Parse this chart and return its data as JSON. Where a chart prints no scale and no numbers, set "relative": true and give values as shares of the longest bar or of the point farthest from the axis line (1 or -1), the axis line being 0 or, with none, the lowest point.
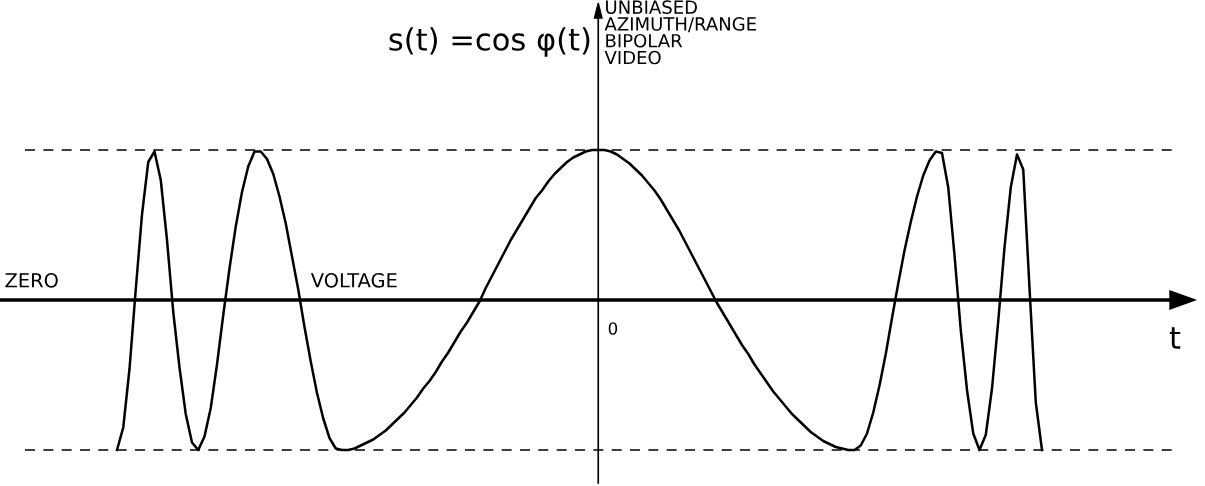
{
  "chart_data": {
    "type": "line",
    "relative": true,
    "ylabel": "s(t) =cos φ(t)",
    "xlabel": "t",
    "categories": [
      null,
      null,
      null,
      null,
      null,
      null,
      null,
      null,
      null,
      null,
      null,
      null,
      null,
      null,
      null,
      null,
      null,
      null,
      null,
      null,
      null,
      null,
      null,
      null,
      null,
      null,
      null,
      null,
      null,
      null,
      null,
      null,
      null,
      null,
      null,
      null,
      null,
      null,
      null,
      null,
      null,
      null,
      null,
      null,
      null,
      null,
      null,
      null,
      null,
      null,
      null,
      null,
      null,
      null,
      null,
      null,
      null,
      null,
      null,
      null,
      null,
      null,
      null,
      null,
      null,
      null,
      null,
      null,
      null,
      null,
      null,
      null,
      null,
      null,
      null,
      null,
      null,
      null,
      null,
      null,
      null,
      null,
      null,
      null,
      null,
      null,
      null,
      null,
      null,
      null,
      null,
      null,
      null,
      null,
      null,
      null,
      null,
      null,
      null,
      null,
      null,
      null,
      null,
      null,
      null,
      null,
      null,
      null,
      null,
      null,
      null,
      null,
      null,
      null,
      null,
      null,
      null,
      null,
      null,
      null,
      null,
      null,
      null,
      null,
      null,
      null,
      null,
      null,
      null,
      null,
      null,
      null,
      null,
      null,
      null,
      null,
      null,
      null,
      null,
      null,
      null,
      null,
      null,
      null,
      null,
      null,
      null,
      null,
      null
    ],
    "series": [
      {
        "color": "#000000",
        "values": [
          -1.0,
          -0.85,
          -0.46,
          0.07,
          0.57,
          0.92,
          0.99,
          0.8,
          0.4,
          -0.08,
          -0.45,
          -0.76,
          -0.95,
          -1.0,
          -0.91,
          -0.72,
          -0.43,
          -0.1,
          0.21,
          0.49,
          0.72,
          0.89,
          0.99,
          0.99,
          0.94,
          0.84,
          0.69,
          0.51,
          0.29,
          0.07,
          -0.18,
          -0.41,
          -0.62,
          -0.79,
          -0.92,
          -0.99,
          -1.0,
          -1.0,
          -0.99,
          -0.97,
          -0.95,
          -0.93,
          -0.9,
          -0.87,
          -0.83,
          -0.79,
          -0.75,
          -0.7,
          -0.65,
          -0.59,
          -0.54,
          -0.48,
          -0.41,
          -0.35,
          -0.28,
          -0.21,
          -0.15,
          -0.08,
          -0.01,
          0.08,
          0.16,
          0.24,
          0.32,
          0.4,
          0.47,
          0.54,
          0.61,
          0.68,
          0.73,
          0.79,
          0.84,
          0.88,
          0.92,
          0.95,
          0.97,
          0.99,
          1.0,
          1.0,
          1.0,
          0.99,
          0.97,
          0.94,
          0.91,
          0.87,
          0.83,
          0.78,
          0.73,
          0.67,
          0.6,
          0.53,
          0.46,
          0.38,
          0.3,
          0.22,
          0.14,
          0.06,
          -0.02,
          -0.09,
          -0.16,
          -0.23,
          -0.3,
          -0.36,
          -0.43,
          -0.49,
          -0.55,
          -0.61,
          -0.66,
          -0.71,
          -0.76,
          -0.8,
          -0.84,
          -0.88,
          -0.91,
          -0.94,
          -0.96,
          -0.98,
          -0.99,
          -1.0,
          -1.0,
          -0.97,
          -0.89,
          -0.75,
          -0.57,
          -0.36,
          -0.12,
          0.11,
          0.33,
          0.52,
          0.69,
          0.83,
          0.93,
          0.99,
          0.98,
          0.75,
          0.3,
          -0.2,
          -0.6,
          -0.89,
          -1.0,
          -0.9,
          -0.59,
          -0.14,
          0.35,
          0.75,
          0.97,
          0.87,
          0.08,
          -0.68,
          -1.0
        ]
      }
    ],
    "ref_lines": [
      {
        "axis": "y",
        "value": 1,
        "line_style": "dashed",
        "color": "#000000"
      },
      {
        "axis": "y",
        "value": -1,
        "line_style": "dashed",
        "color": "#000000"
      }
    ],
    "annotations": [
      "UNBIASED\nAZIMUTH/RANGE\nBIPOLAR\nVIDEO",
      "ZERO",
      "VOLTAGE",
      "0"
    ],
    "grid": false,
    "legend": false
  }
}
